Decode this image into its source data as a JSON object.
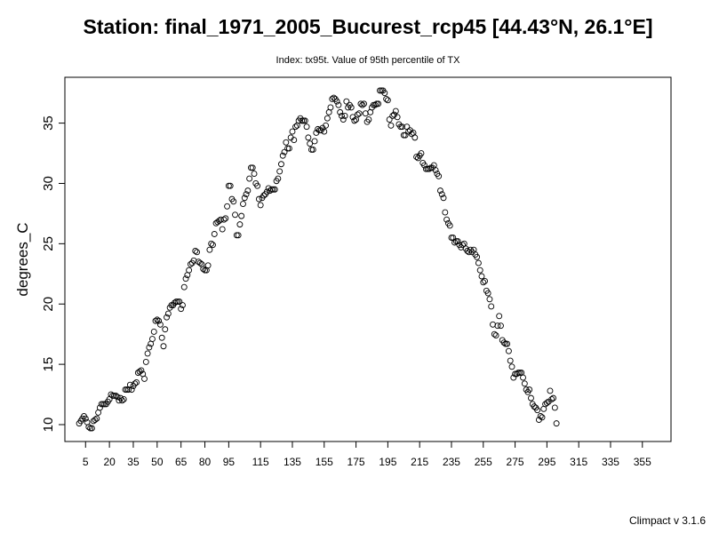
{
  "chart_data": {
    "type": "scatter",
    "title": "Station: final_1971_2005_Bucurest_rcp45 [44.43°N, 26.1°E]",
    "subtitle": "Index: tx95t. Value of 95th percentile of TX",
    "xlabel": "",
    "ylabel": "degrees_C",
    "xlim": [
      -8,
      373
    ],
    "ylim": [
      8.6,
      38.8
    ],
    "x_ticks": [
      5,
      20,
      35,
      50,
      65,
      80,
      95,
      115,
      135,
      155,
      175,
      195,
      215,
      235,
      255,
      275,
      295,
      315,
      335,
      355
    ],
    "y_ticks": [
      10,
      15,
      20,
      25,
      30,
      35
    ],
    "grid": false,
    "marker": "open-circle",
    "x_start": 1,
    "values": [
      10.1,
      10.3,
      10.5,
      10.7,
      10.5,
      10.2,
      9.8,
      9.7,
      9.7,
      10.3,
      10.4,
      10.5,
      11.0,
      11.4,
      11.7,
      11.7,
      11.7,
      11.7,
      11.9,
      12.1,
      12.5,
      12.4,
      12.4,
      12.4,
      12.3,
      12.0,
      12.2,
      12.0,
      12.1,
      12.9,
      12.9,
      12.9,
      13.3,
      12.9,
      13.2,
      13.4,
      13.5,
      14.3,
      14.4,
      14.5,
      14.2,
      13.8,
      15.2,
      15.9,
      16.4,
      16.7,
      17.1,
      17.7,
      18.6,
      18.7,
      18.6,
      18.3,
      17.2,
      16.5,
      17.9,
      18.9,
      19.2,
      19.7,
      19.9,
      19.9,
      20.1,
      20.2,
      20.2,
      20.2,
      19.6,
      19.9,
      21.4,
      22.1,
      22.4,
      22.8,
      23.3,
      23.4,
      23.6,
      24.4,
      24.3,
      23.5,
      23.4,
      23.3,
      22.9,
      22.8,
      22.8,
      23.2,
      24.5,
      25.0,
      24.9,
      25.8,
      26.7,
      26.8,
      26.9,
      27.0,
      26.2,
      27.0,
      27.1,
      28.1,
      29.8,
      29.8,
      28.7,
      28.5,
      27.4,
      25.7,
      25.7,
      26.6,
      27.3,
      28.3,
      28.8,
      29.1,
      29.4,
      30.4,
      31.3,
      31.3,
      30.8,
      30.0,
      29.8,
      28.7,
      28.2,
      28.8,
      29.0,
      29.1,
      29.3,
      29.6,
      29.4,
      29.5,
      29.5,
      29.5,
      30.2,
      30.4,
      31.0,
      31.6,
      32.3,
      32.6,
      33.4,
      32.9,
      32.9,
      33.8,
      34.3,
      33.6,
      34.7,
      34.8,
      35.2,
      35.4,
      35.2,
      35.2,
      35.2,
      34.7,
      33.8,
      33.3,
      32.8,
      32.8,
      33.5,
      34.2,
      34.5,
      34.4,
      34.4,
      34.6,
      34.3,
      34.8,
      35.4,
      35.9,
      36.3,
      37.0,
      37.1,
      37.0,
      36.8,
      36.5,
      35.9,
      35.6,
      35.3,
      35.6,
      36.8,
      36.3,
      36.5,
      36.3,
      35.5,
      35.2,
      35.3,
      35.7,
      35.8,
      36.6,
      36.5,
      36.6,
      35.8,
      35.1,
      35.3,
      35.9,
      36.3,
      36.5,
      36.5,
      36.6,
      36.6,
      37.7,
      37.7,
      37.7,
      37.5,
      37.0,
      36.9,
      35.3,
      34.8,
      35.6,
      35.7,
      36.0,
      35.5,
      34.9,
      34.7,
      34.7,
      34.0,
      34.0,
      34.7,
      34.3,
      34.4,
      34.1,
      34.2,
      33.8,
      32.2,
      32.1,
      32.3,
      32.5,
      31.7,
      31.5,
      31.2,
      31.2,
      31.2,
      31.3,
      31.3,
      31.5,
      31.1,
      30.8,
      30.6,
      29.4,
      29.1,
      28.8,
      27.6,
      27.0,
      26.7,
      26.5,
      25.5,
      25.5,
      25.1,
      25.2,
      25.2,
      24.9,
      24.7,
      24.9,
      25.0,
      24.6,
      24.4,
      24.3,
      24.5,
      24.3,
      24.5,
      24.1,
      23.9,
      23.4,
      22.8,
      22.3,
      21.8,
      21.9,
      21.1,
      20.9,
      20.4,
      19.8,
      18.3,
      17.5,
      17.4,
      18.2,
      19.0,
      18.2,
      17.0,
      16.8,
      16.7,
      16.7,
      16.1,
      15.3,
      14.8,
      13.9,
      14.2,
      14.2,
      14.3,
      14.3,
      14.3,
      13.9,
      13.4,
      12.9,
      12.7,
      12.9,
      12.2,
      11.7,
      11.5,
      11.4,
      11.2,
      10.4,
      10.7,
      10.6,
      11.3,
      11.7,
      11.8,
      11.9,
      12.8,
      12.1,
      12.2,
      11.4,
      10.1
    ]
  },
  "footer": "Climpact v 3.1.6"
}
